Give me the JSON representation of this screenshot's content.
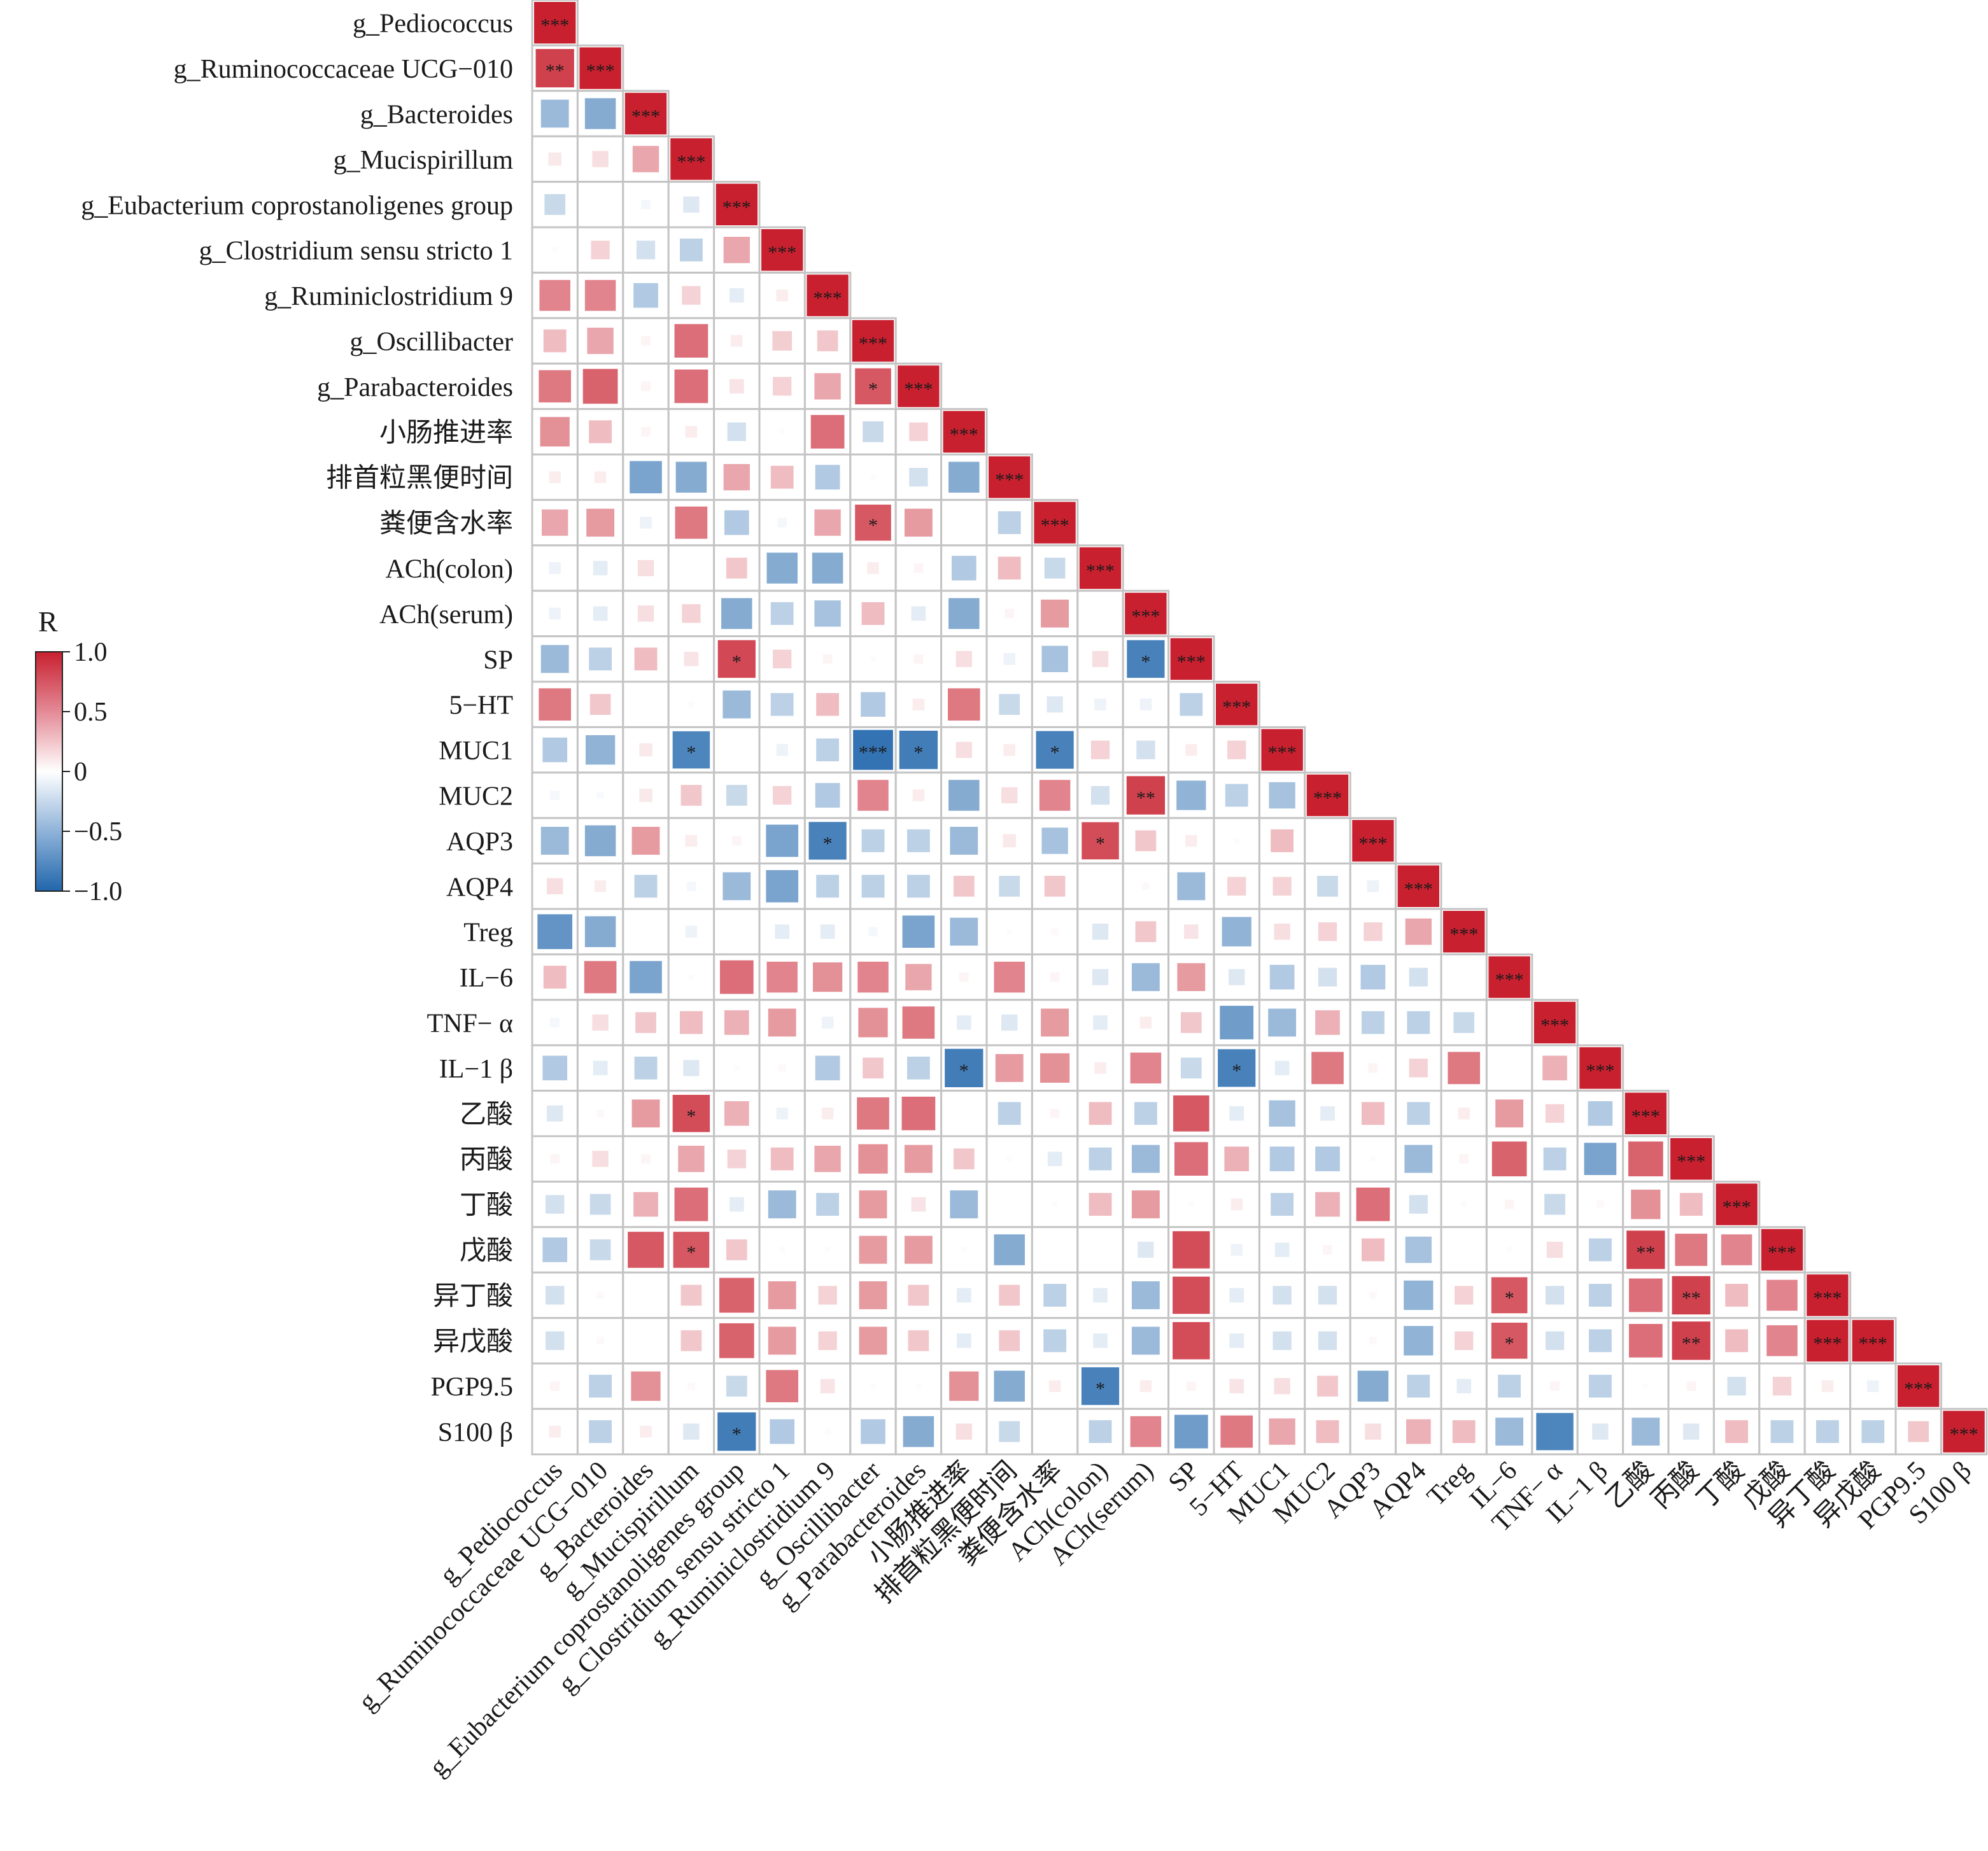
{
  "chart_data": {
    "type": "heatmap",
    "subtype": "lower-triangular-correlation",
    "labels": [
      "g_Pediococcus",
      "g_Ruminococcaceae UCG−010",
      "g_Bacteroides",
      "g_Mucispirillum",
      "g_Eubacterium coprostanoligenes group",
      "g_Clostridium sensu stricto 1",
      "g_Ruminiclostridium 9",
      "g_Oscillibacter",
      "g_Parabacteroides",
      "小肠推进率",
      "排首粒黑便时间",
      "粪便含水率",
      "ACh(colon)",
      "ACh(serum)",
      "SP",
      "5−HT",
      "MUC1",
      "MUC2",
      "AQP3",
      "AQP4",
      "Treg",
      "IL−6",
      "TNF− α",
      "IL−1 β",
      "乙酸",
      "丙酸",
      "丁酸",
      "戊酸",
      "异丁酸",
      "异戊酸",
      "PGP9.5",
      "S100 β"
    ],
    "rows": [
      [
        1.0
      ],
      [
        0.85,
        1.0
      ],
      [
        -0.45,
        -0.55,
        1.0
      ],
      [
        0.1,
        0.15,
        0.4,
        1.0
      ],
      [
        -0.25,
        0.0,
        -0.05,
        -0.15,
        1.0
      ],
      [
        0.02,
        0.2,
        -0.2,
        -0.3,
        0.4,
        1.0
      ],
      [
        0.55,
        0.55,
        -0.35,
        0.2,
        -0.12,
        0.08,
        1.0
      ],
      [
        0.3,
        0.4,
        0.05,
        0.65,
        0.08,
        0.22,
        0.25,
        1.0
      ],
      [
        0.6,
        0.7,
        0.05,
        0.65,
        0.12,
        0.2,
        0.4,
        0.75,
        1.0
      ],
      [
        0.5,
        0.3,
        0.05,
        0.08,
        -0.2,
        0.02,
        0.65,
        -0.25,
        0.2,
        1.0
      ],
      [
        0.08,
        0.08,
        -0.6,
        -0.55,
        0.4,
        0.3,
        -0.35,
        0.02,
        -0.2,
        -0.55,
        1.0
      ],
      [
        0.4,
        0.45,
        -0.08,
        0.6,
        -0.35,
        -0.05,
        0.4,
        0.75,
        0.45,
        0.0,
        -0.3,
        1.0
      ],
      [
        -0.08,
        -0.12,
        0.15,
        0.0,
        0.25,
        -0.55,
        -0.55,
        0.08,
        0.05,
        -0.35,
        0.3,
        -0.25,
        1.0
      ],
      [
        -0.08,
        -0.12,
        0.15,
        0.2,
        -0.55,
        -0.3,
        -0.4,
        0.3,
        -0.12,
        -0.55,
        0.05,
        0.45,
        0.0,
        1.0
      ],
      [
        -0.45,
        -0.3,
        0.3,
        0.12,
        0.82,
        0.2,
        0.05,
        0.02,
        0.05,
        0.15,
        -0.08,
        -0.4,
        0.15,
        -0.82,
        1.0
      ],
      [
        0.6,
        0.25,
        0.0,
        0.02,
        -0.45,
        -0.3,
        0.3,
        -0.35,
        0.08,
        0.6,
        -0.25,
        -0.15,
        -0.08,
        -0.08,
        -0.3,
        1.0
      ],
      [
        -0.35,
        -0.5,
        0.1,
        -0.8,
        0.0,
        -0.08,
        -0.3,
        -0.92,
        -0.85,
        0.15,
        0.08,
        -0.82,
        0.2,
        -0.2,
        0.08,
        0.2,
        1.0
      ],
      [
        -0.05,
        -0.03,
        0.1,
        0.25,
        -0.25,
        0.2,
        -0.35,
        0.55,
        0.08,
        -0.55,
        0.15,
        0.55,
        -0.2,
        0.85,
        -0.5,
        -0.3,
        -0.4,
        1.0
      ],
      [
        -0.45,
        -0.55,
        0.45,
        0.08,
        0.05,
        -0.6,
        -0.82,
        -0.3,
        -0.3,
        -0.45,
        0.1,
        -0.4,
        0.8,
        0.25,
        0.08,
        0.02,
        0.3,
        0.0,
        1.0
      ],
      [
        0.15,
        0.08,
        -0.3,
        -0.05,
        -0.45,
        -0.6,
        -0.3,
        -0.3,
        -0.3,
        0.25,
        -0.25,
        0.25,
        0.0,
        0.03,
        -0.45,
        0.2,
        0.2,
        -0.25,
        -0.08,
        1.0
      ],
      [
        -0.7,
        -0.55,
        0.0,
        -0.08,
        0.0,
        -0.12,
        -0.12,
        -0.05,
        -0.6,
        -0.45,
        0.02,
        0.03,
        -0.15,
        0.25,
        0.12,
        -0.5,
        0.15,
        0.2,
        0.2,
        0.4,
        1.0
      ],
      [
        0.3,
        0.6,
        -0.6,
        0.02,
        0.65,
        0.55,
        0.5,
        0.55,
        0.4,
        0.05,
        0.55,
        0.05,
        -0.15,
        -0.45,
        0.45,
        -0.15,
        -0.35,
        -0.2,
        -0.35,
        -0.2,
        0.0,
        1.0
      ],
      [
        -0.05,
        0.15,
        0.25,
        0.3,
        0.35,
        0.45,
        -0.08,
        0.5,
        0.6,
        -0.12,
        -0.15,
        0.45,
        -0.12,
        0.08,
        0.25,
        -0.65,
        -0.45,
        0.35,
        -0.3,
        -0.3,
        -0.25,
        0.0,
        1.0
      ],
      [
        -0.35,
        -0.12,
        -0.3,
        -0.15,
        0.02,
        0.03,
        -0.35,
        0.25,
        -0.3,
        -0.85,
        0.45,
        0.5,
        0.08,
        0.55,
        -0.25,
        -0.82,
        -0.12,
        0.6,
        0.05,
        0.2,
        0.6,
        0.0,
        0.35,
        1.0
      ],
      [
        -0.15,
        0.03,
        0.45,
        0.8,
        0.35,
        -0.08,
        0.08,
        0.6,
        0.65,
        0.0,
        -0.3,
        0.05,
        0.3,
        -0.3,
        0.75,
        -0.12,
        -0.4,
        -0.12,
        0.3,
        -0.3,
        0.08,
        0.45,
        0.2,
        -0.35,
        1.0
      ],
      [
        0.05,
        0.15,
        0.05,
        0.4,
        0.2,
        0.3,
        0.4,
        0.5,
        0.45,
        0.25,
        0.02,
        -0.12,
        -0.3,
        -0.45,
        0.65,
        0.35,
        -0.35,
        -0.35,
        0.02,
        -0.45,
        0.05,
        0.7,
        -0.3,
        -0.6,
        0.7,
        1.0
      ],
      [
        -0.2,
        -0.25,
        0.35,
        0.65,
        -0.12,
        -0.45,
        -0.3,
        0.45,
        0.12,
        -0.45,
        0.0,
        0.02,
        0.3,
        0.45,
        0.02,
        0.08,
        -0.3,
        0.35,
        0.65,
        -0.2,
        0.02,
        0.05,
        -0.25,
        0.03,
        0.5,
        0.3,
        1.0
      ],
      [
        -0.35,
        -0.25,
        0.75,
        0.75,
        0.25,
        0.02,
        0.02,
        0.45,
        0.45,
        0.02,
        -0.55,
        0.0,
        0.0,
        -0.15,
        0.8,
        -0.08,
        -0.12,
        0.05,
        0.3,
        -0.4,
        0.0,
        0.02,
        0.15,
        -0.3,
        0.85,
        0.6,
        0.55,
        1.0
      ],
      [
        -0.2,
        0.03,
        0.0,
        0.25,
        0.7,
        0.45,
        0.2,
        0.45,
        0.25,
        -0.12,
        0.25,
        -0.3,
        -0.12,
        -0.45,
        0.8,
        -0.12,
        -0.2,
        -0.2,
        0.03,
        -0.5,
        0.2,
        0.75,
        -0.2,
        -0.3,
        0.65,
        0.85,
        0.3,
        0.55,
        1.0
      ],
      [
        -0.2,
        0.03,
        0.0,
        0.25,
        0.7,
        0.45,
        0.2,
        0.45,
        0.25,
        -0.12,
        0.25,
        -0.3,
        -0.12,
        -0.45,
        0.8,
        -0.12,
        -0.2,
        -0.2,
        0.03,
        -0.5,
        0.2,
        0.75,
        -0.2,
        -0.3,
        0.65,
        0.85,
        0.3,
        0.55,
        1.0,
        1.0
      ],
      [
        0.05,
        -0.3,
        0.5,
        0.03,
        -0.25,
        0.6,
        0.12,
        0.02,
        0.02,
        0.5,
        -0.55,
        0.08,
        -0.82,
        0.08,
        0.05,
        0.12,
        0.15,
        0.25,
        -0.55,
        -0.3,
        -0.12,
        -0.3,
        0.05,
        -0.3,
        0.02,
        0.05,
        -0.2,
        0.2,
        0.08,
        -0.08,
        1.0
      ],
      [
        0.08,
        -0.3,
        0.08,
        -0.15,
        -0.85,
        -0.35,
        0.02,
        -0.35,
        -0.55,
        0.15,
        -0.25,
        0.0,
        -0.3,
        0.55,
        -0.65,
        0.6,
        0.4,
        0.3,
        0.15,
        0.35,
        0.3,
        -0.45,
        -0.8,
        -0.15,
        -0.45,
        -0.15,
        0.3,
        -0.3,
        -0.3,
        -0.3,
        0.25,
        1.0
      ]
    ],
    "significance": [
      {
        "row": 0,
        "col": 0,
        "mark": "***"
      },
      {
        "row": 1,
        "col": 0,
        "mark": "**"
      },
      {
        "row": 1,
        "col": 1,
        "mark": "***"
      },
      {
        "row": 2,
        "col": 2,
        "mark": "***"
      },
      {
        "row": 3,
        "col": 3,
        "mark": "***"
      },
      {
        "row": 4,
        "col": 4,
        "mark": "***"
      },
      {
        "row": 5,
        "col": 5,
        "mark": "***"
      },
      {
        "row": 6,
        "col": 6,
        "mark": "***"
      },
      {
        "row": 7,
        "col": 7,
        "mark": "***"
      },
      {
        "row": 8,
        "col": 7,
        "mark": "*"
      },
      {
        "row": 8,
        "col": 8,
        "mark": "***"
      },
      {
        "row": 9,
        "col": 9,
        "mark": "***"
      },
      {
        "row": 10,
        "col": 10,
        "mark": "***"
      },
      {
        "row": 11,
        "col": 7,
        "mark": "*"
      },
      {
        "row": 11,
        "col": 11,
        "mark": "***"
      },
      {
        "row": 12,
        "col": 12,
        "mark": "***"
      },
      {
        "row": 13,
        "col": 13,
        "mark": "***"
      },
      {
        "row": 14,
        "col": 4,
        "mark": "*"
      },
      {
        "row": 14,
        "col": 13,
        "mark": "*"
      },
      {
        "row": 14,
        "col": 14,
        "mark": "***"
      },
      {
        "row": 15,
        "col": 15,
        "mark": "***"
      },
      {
        "row": 16,
        "col": 3,
        "mark": "*"
      },
      {
        "row": 16,
        "col": 7,
        "mark": "***"
      },
      {
        "row": 16,
        "col": 8,
        "mark": "*"
      },
      {
        "row": 16,
        "col": 11,
        "mark": "*"
      },
      {
        "row": 16,
        "col": 16,
        "mark": "***"
      },
      {
        "row": 17,
        "col": 13,
        "mark": "**"
      },
      {
        "row": 17,
        "col": 17,
        "mark": "***"
      },
      {
        "row": 18,
        "col": 6,
        "mark": "*"
      },
      {
        "row": 18,
        "col": 12,
        "mark": "*"
      },
      {
        "row": 18,
        "col": 18,
        "mark": "***"
      },
      {
        "row": 19,
        "col": 19,
        "mark": "***"
      },
      {
        "row": 20,
        "col": 20,
        "mark": "***"
      },
      {
        "row": 21,
        "col": 21,
        "mark": "***"
      },
      {
        "row": 22,
        "col": 22,
        "mark": "***"
      },
      {
        "row": 23,
        "col": 9,
        "mark": "*"
      },
      {
        "row": 23,
        "col": 15,
        "mark": "*"
      },
      {
        "row": 23,
        "col": 23,
        "mark": "***"
      },
      {
        "row": 24,
        "col": 3,
        "mark": "*"
      },
      {
        "row": 24,
        "col": 24,
        "mark": "***"
      },
      {
        "row": 25,
        "col": 25,
        "mark": "***"
      },
      {
        "row": 26,
        "col": 26,
        "mark": "***"
      },
      {
        "row": 27,
        "col": 3,
        "mark": "*"
      },
      {
        "row": 27,
        "col": 24,
        "mark": "**"
      },
      {
        "row": 27,
        "col": 27,
        "mark": "***"
      },
      {
        "row": 28,
        "col": 21,
        "mark": "*"
      },
      {
        "row": 28,
        "col": 25,
        "mark": "**"
      },
      {
        "row": 28,
        "col": 28,
        "mark": "***"
      },
      {
        "row": 29,
        "col": 21,
        "mark": "*"
      },
      {
        "row": 29,
        "col": 25,
        "mark": "**"
      },
      {
        "row": 29,
        "col": 28,
        "mark": "***"
      },
      {
        "row": 29,
        "col": 29,
        "mark": "***"
      },
      {
        "row": 30,
        "col": 12,
        "mark": "*"
      },
      {
        "row": 30,
        "col": 30,
        "mark": "***"
      },
      {
        "row": 31,
        "col": 4,
        "mark": "*"
      },
      {
        "row": 31,
        "col": 31,
        "mark": "***"
      }
    ],
    "legend": {
      "title": "R",
      "ticks": [
        "1.0",
        "0.5",
        "0",
        "−0.5",
        "−1.0"
      ],
      "tick_values": [
        1.0,
        0.5,
        0.0,
        -0.5,
        -1.0
      ],
      "range": [
        -1.0,
        1.0
      ],
      "placement": "left-middle"
    },
    "colors": {
      "positive": "#c8202f",
      "neutral": "#ffffff",
      "negative": "#2166ac",
      "cell_border": "#c4c4c4"
    }
  }
}
